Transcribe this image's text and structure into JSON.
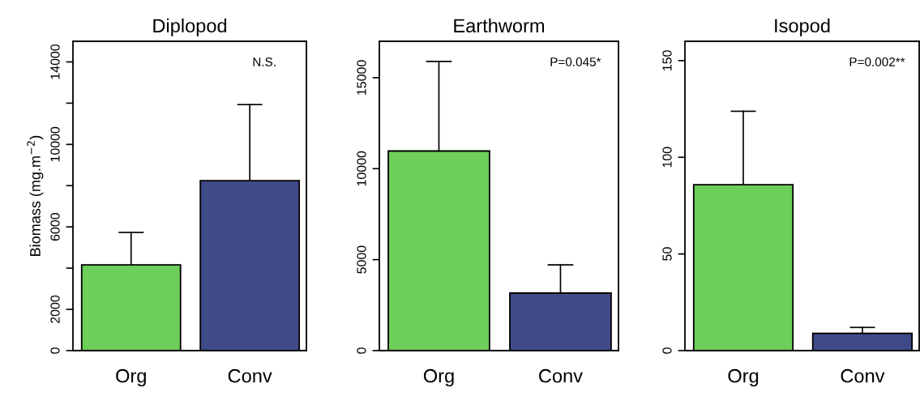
{
  "chart_data": [
    {
      "type": "bar",
      "title": "Diplopod",
      "ylabel": "Biomass (mg.m$^{−2}$)",
      "categories": [
        "Org",
        "Conv"
      ],
      "values": [
        4160,
        8240
      ],
      "colors": [
        "#6dce5a",
        "#3f4a88"
      ],
      "errors": [
        [
          4160,
          5730
        ],
        [
          8240,
          11930
        ]
      ],
      "ylim": [
        0,
        15000
      ],
      "yticks": [
        0,
        2000,
        {
          "value": 4000,
          "label": null
        },
        6000,
        {
          "value": 8000,
          "label": null
        },
        10000,
        {
          "value": 12000,
          "label": null
        },
        14000
      ],
      "annotations": [
        "N.S."
      ]
    },
    {
      "type": "bar",
      "title": "Earthworm",
      "categories": [
        "Org",
        "Conv"
      ],
      "values": [
        10970,
        3160
      ],
      "colors": [
        "#6dce5a",
        "#3f4a88"
      ],
      "errors": [
        [
          10970,
          15890
        ],
        [
          3160,
          4710
        ]
      ],
      "ylim": [
        0,
        17000
      ],
      "yticks": [
        0,
        5000,
        10000,
        15000
      ],
      "annotations": [
        "P=0.045*"
      ]
    },
    {
      "type": "bar",
      "title": "Isopod",
      "categories": [
        "Org",
        "Conv"
      ],
      "values": [
        85.8,
        8.9
      ],
      "colors": [
        "#6dce5a",
        "#3f4a88"
      ],
      "errors": [
        [
          85.8,
          123.8
        ],
        [
          8.9,
          12.0
        ]
      ],
      "ylim": [
        0,
        160
      ],
      "yticks": [
        0,
        50,
        100,
        150
      ],
      "annotations": [
        "P=0.002**"
      ]
    }
  ]
}
